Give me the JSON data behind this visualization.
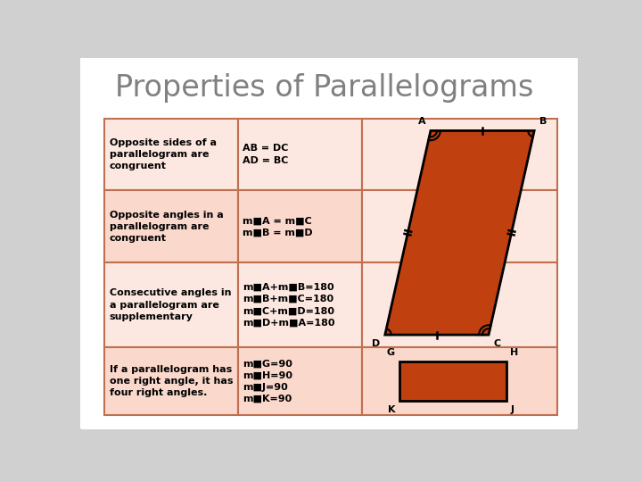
{
  "title": "Properties of Parallelograms",
  "bg_outer": "#d0d0d0",
  "bg_inner": "#ffffff",
  "border_color": "#c0a080",
  "cell_bg_even": "#fce8e0",
  "cell_bg_odd": "#fad8cc",
  "cell_bg_col3_even": "#fce8e0",
  "cell_bg_col3_odd": "#f8d0c0",
  "table_border": "#c07050",
  "para_fill": "#c04010",
  "rect_fill": "#c04010",
  "title_color": "#808080",
  "text_color": "#000000",
  "rows": [
    {
      "col1": "Opposite sides of a\nparallelogram are\ncongruent",
      "col2": "AB = DC\nAD = BC"
    },
    {
      "col1": "Opposite angles in a\nparallelogram are\ncongruent",
      "col2": "m■A = m■C\nm■B = m■D"
    },
    {
      "col1": "Consecutive angles in\na parallelogram are\nsupplementary",
      "col2": "m■A+m■B=180\nm■B+m■C=180\nm■C+m■D=180\nm■D+m■A=180"
    },
    {
      "col1": "If a parallelogram has\none right angle, it has\nfour right angles.",
      "col2": "m■G=90\nm■H=90\nm■J=90\nm■K=90"
    }
  ],
  "col2_row1": "AB = DC\nAD = BC",
  "col2_row2": "m■A = m■C\nm■B = m■D",
  "col2_row3": "m■A+m■B=180\nm■B+m■C=180\nm■C+m■D=180\nm■D+m■A=180",
  "col2_row4": "m■G=90\nm■H=90\nm■J=90\nm■K=90"
}
